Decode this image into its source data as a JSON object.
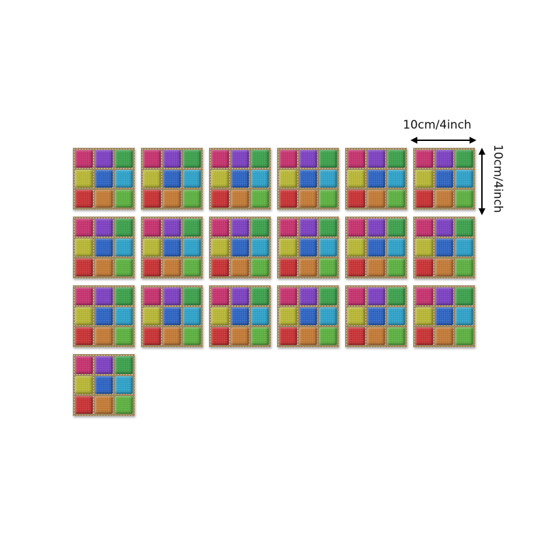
{
  "dimension_labels": {
    "width": "10cm/4inch",
    "height": "10cm/4inch"
  },
  "tile_count": 19,
  "grid_columns": 6,
  "tile_colors": [
    "#c4306c",
    "#7b3fbf",
    "#3a9e4a",
    "#b5b432",
    "#2b62c0",
    "#2c9fc6",
    "#c63032",
    "#c07833",
    "#5aae3e"
  ],
  "grout_color": "#9c8660"
}
